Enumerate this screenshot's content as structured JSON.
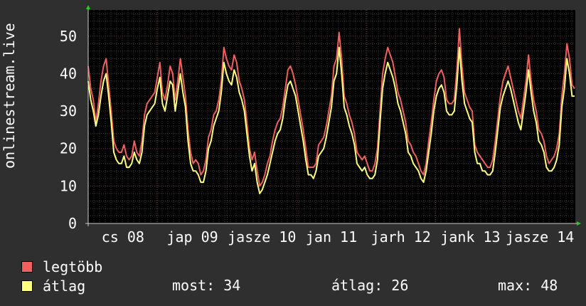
{
  "chart_data": {
    "type": "line",
    "ylabel": "onlinestream.live",
    "ylim": [
      0,
      57
    ],
    "yticks": [
      0,
      10,
      20,
      30,
      40,
      50
    ],
    "x_tick_labels": [
      "cs 08",
      "jap 09",
      "jasze 10",
      "jan 11",
      "jarh 12",
      "jank 13",
      "jasze 14"
    ],
    "grid": true,
    "colors": {
      "max": "#f06060",
      "avg": "#ffff80",
      "background": "#000000"
    },
    "series": [
      {
        "name": "legtöbb",
        "values": [
          42,
          36,
          33,
          27,
          32,
          38,
          42,
          44,
          37,
          30,
          22,
          20,
          19,
          19,
          21,
          18,
          17,
          18,
          22,
          19,
          18,
          22,
          29,
          32,
          33,
          34,
          35,
          39,
          43,
          35,
          33,
          37,
          42,
          40,
          33,
          38,
          44,
          39,
          34,
          25,
          19,
          16,
          17,
          16,
          13,
          14,
          17,
          23,
          25,
          29,
          30,
          33,
          38,
          47,
          44,
          42,
          41,
          45,
          43,
          38,
          36,
          33,
          27,
          20,
          17,
          19,
          14,
          10,
          11,
          13,
          16,
          18,
          22,
          25,
          27,
          28,
          31,
          36,
          41,
          42,
          40,
          37,
          33,
          29,
          25,
          20,
          15,
          15,
          15,
          16,
          21,
          22,
          23,
          26,
          30,
          34,
          42,
          44,
          51,
          44,
          34,
          32,
          29,
          27,
          24,
          19,
          18,
          17,
          18,
          16,
          14,
          14,
          16,
          20,
          30,
          40,
          44,
          47,
          45,
          43,
          39,
          35,
          33,
          30,
          27,
          22,
          21,
          19,
          18,
          16,
          14,
          13,
          16,
          22,
          27,
          33,
          38,
          40,
          41,
          39,
          33,
          32,
          32,
          33,
          41,
          52,
          42,
          35,
          33,
          31,
          30,
          21,
          19,
          18,
          17,
          16,
          15,
          15,
          17,
          22,
          28,
          34,
          38,
          40,
          42,
          39,
          36,
          33,
          30,
          28,
          33,
          38,
          45,
          38,
          33,
          30,
          25,
          24,
          22,
          18,
          16,
          17,
          18,
          20,
          24,
          34,
          40,
          48,
          44,
          37,
          36
        ]
      },
      {
        "name": "átlag",
        "values": [
          38,
          33,
          30,
          26,
          29,
          34,
          38,
          40,
          34,
          27,
          19,
          17,
          16,
          16,
          18,
          15,
          15,
          16,
          19,
          17,
          16,
          19,
          26,
          29,
          30,
          31,
          32,
          36,
          39,
          32,
          30,
          34,
          38,
          37,
          30,
          35,
          40,
          35,
          31,
          22,
          16,
          14,
          14,
          13,
          11,
          11,
          14,
          20,
          22,
          26,
          28,
          30,
          35,
          43,
          40,
          38,
          37,
          41,
          39,
          35,
          33,
          30,
          24,
          18,
          14,
          16,
          11,
          8,
          9,
          11,
          13,
          16,
          19,
          22,
          24,
          25,
          28,
          33,
          37,
          38,
          36,
          34,
          30,
          26,
          22,
          17,
          13,
          13,
          12,
          14,
          18,
          19,
          20,
          23,
          27,
          31,
          38,
          40,
          47,
          40,
          31,
          29,
          26,
          24,
          21,
          16,
          15,
          14,
          15,
          13,
          12,
          12,
          13,
          17,
          27,
          36,
          40,
          43,
          41,
          39,
          36,
          32,
          30,
          27,
          24,
          19,
          18,
          16,
          15,
          14,
          12,
          11,
          14,
          19,
          24,
          30,
          34,
          36,
          37,
          35,
          30,
          29,
          29,
          30,
          37,
          47,
          38,
          32,
          30,
          28,
          27,
          19,
          16,
          16,
          14,
          14,
          13,
          13,
          14,
          19,
          25,
          31,
          34,
          36,
          38,
          36,
          33,
          30,
          27,
          25,
          30,
          35,
          41,
          35,
          30,
          27,
          22,
          21,
          19,
          15,
          14,
          14,
          15,
          17,
          21,
          31,
          36,
          44,
          40,
          34,
          34
        ]
      }
    ]
  },
  "legend": [
    {
      "label": "legtöbb",
      "color": "#f06060"
    },
    {
      "label": "átlag",
      "color": "#ffff80"
    }
  ],
  "stats": {
    "most": "most: 34",
    "atlag": "átlag: 26",
    "max": "max: 48"
  }
}
